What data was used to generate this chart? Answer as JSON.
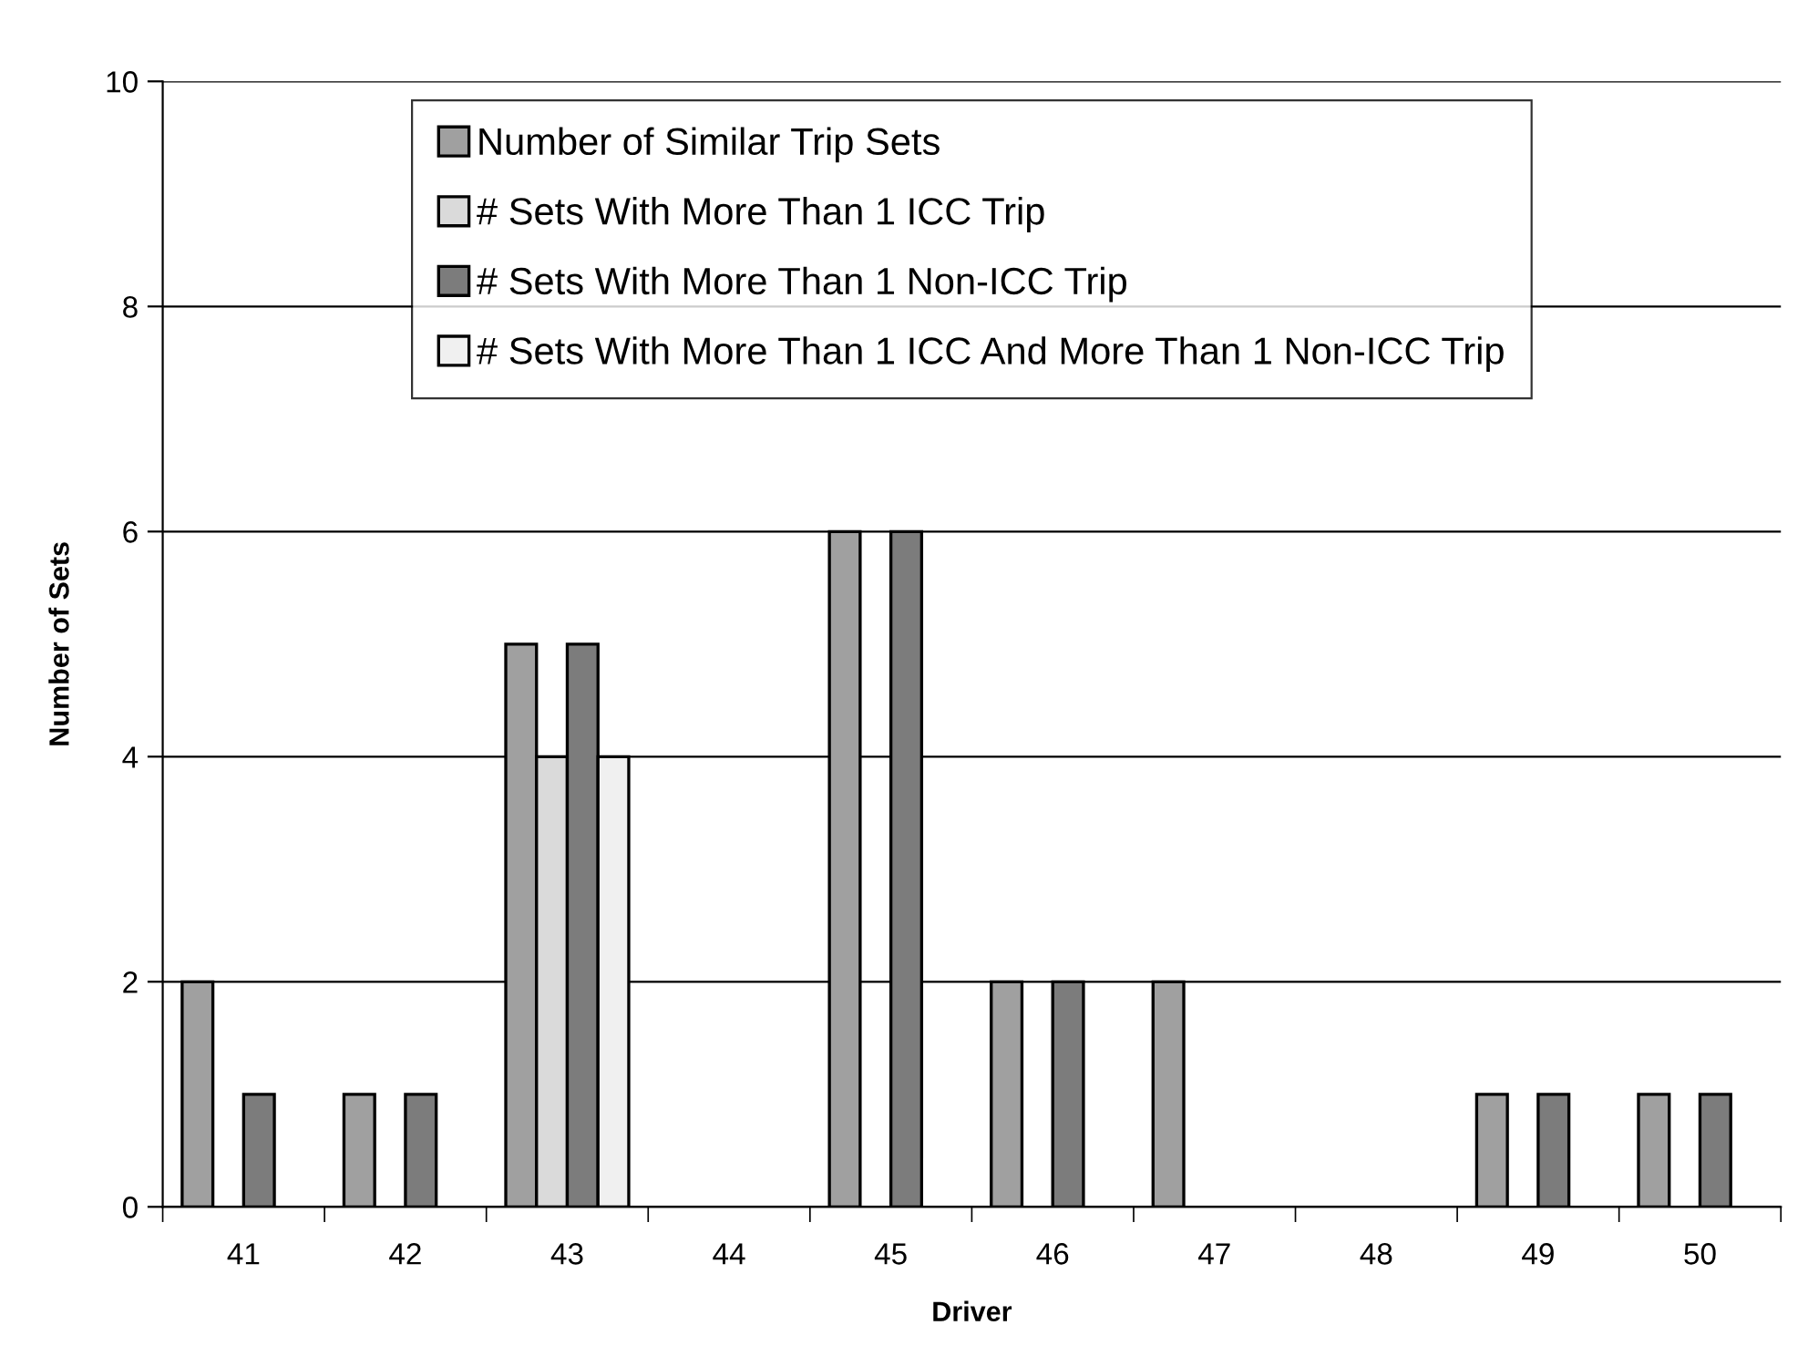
{
  "chart_data": {
    "type": "bar",
    "xlabel": "Driver",
    "ylabel": "Number of Sets",
    "categories": [
      "41",
      "42",
      "43",
      "44",
      "45",
      "46",
      "47",
      "48",
      "49",
      "50"
    ],
    "series": [
      {
        "name": "Number of Similar Trip Sets",
        "color": "#a0a0a0",
        "values": [
          2,
          1,
          5,
          0,
          6,
          2,
          2,
          0,
          1,
          1
        ]
      },
      {
        "name": "# Sets With More Than 1 ICC Trip",
        "color": "#dadada",
        "values": [
          0,
          0,
          4,
          0,
          0,
          0,
          0,
          0,
          0,
          0
        ]
      },
      {
        "name": "# Sets With More Than 1 Non-ICC Trip",
        "color": "#7c7c7c",
        "values": [
          1,
          1,
          5,
          0,
          6,
          2,
          0,
          0,
          1,
          1
        ]
      },
      {
        "name": "# Sets With More Than 1 ICC And More Than 1 Non-ICC Trip",
        "color": "#f0f0f0",
        "values": [
          0,
          0,
          4,
          0,
          0,
          0,
          0,
          0,
          0,
          0
        ]
      }
    ],
    "ylim": [
      0,
      10
    ],
    "yticks": [
      0,
      2,
      4,
      6,
      8,
      10
    ],
    "grid": "y",
    "legend": "top"
  }
}
